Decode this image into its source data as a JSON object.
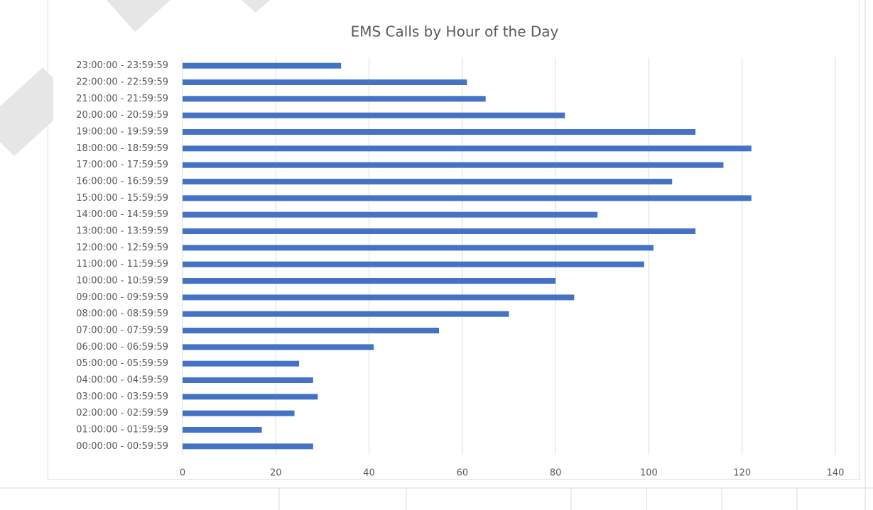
{
  "chart_data": {
    "type": "bar",
    "orientation": "horizontal",
    "title": "EMS Calls by Hour of the Day",
    "categories": [
      "00:00:00 - 00:59:59",
      "01:00:00 - 01:59:59",
      "02:00:00 - 02:59:59",
      "03:00:00 - 03:59:59",
      "04:00:00 - 04:59:59",
      "05:00:00 - 05:59:59",
      "06:00:00 - 06:59:59",
      "07:00:00 - 07:59:59",
      "08:00:00 - 08:59:59",
      "09:00:00 - 09:59:59",
      "10:00:00 - 10:59:59",
      "11:00:00 - 11:59:59",
      "12:00:00 - 12:59:59",
      "13:00:00 - 13:59:59",
      "14:00:00 - 14:59:59",
      "15:00:00 - 15:59:59",
      "16:00:00 - 16:59:59",
      "17:00:00 - 17:59:59",
      "18:00:00 - 18:59:59",
      "19:00:00 - 19:59:59",
      "20:00:00 - 20:59:59",
      "21:00:00 - 21:59:59",
      "22:00:00 - 22:59:59",
      "23:00:00 - 23:59:59"
    ],
    "values": [
      28,
      17,
      24,
      29,
      28,
      25,
      41,
      55,
      70,
      84,
      80,
      99,
      101,
      110,
      89,
      122,
      105,
      116,
      122,
      110,
      82,
      65,
      61,
      34
    ],
    "color": "#4472c4",
    "xlim": [
      0,
      140
    ],
    "xticks": [
      0,
      20,
      40,
      60,
      80,
      100,
      120,
      140
    ],
    "grid": true
  }
}
